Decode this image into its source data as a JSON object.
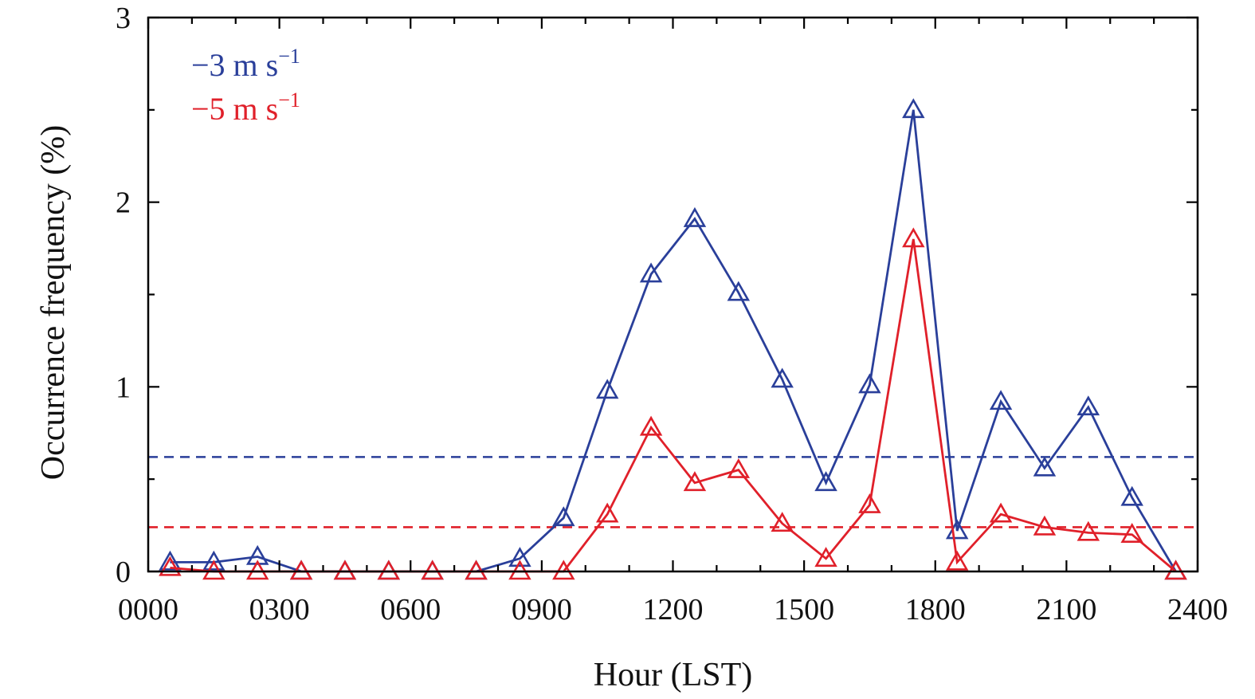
{
  "chart_data": {
    "type": "line",
    "xlabel": "Hour (LST)",
    "ylabel": "Occurrence frequency (%)",
    "xlim": [
      0,
      2400
    ],
    "ylim": [
      0,
      3
    ],
    "x_tick_labels": [
      "0000",
      "0300",
      "0600",
      "0900",
      "1200",
      "1500",
      "1800",
      "2100",
      "2400"
    ],
    "y_tick_labels": [
      "0",
      "1",
      "2",
      "3"
    ],
    "grid": false,
    "legend_position": "top-left",
    "legend": [
      {
        "base": "−3 m s",
        "sup": "−1",
        "color": "#2a3f9a"
      },
      {
        "base": "−5 m s",
        "sup": "−1",
        "color": "#e0202a"
      }
    ],
    "x": [
      50,
      150,
      250,
      350,
      450,
      550,
      650,
      750,
      850,
      950,
      1050,
      1150,
      1250,
      1350,
      1450,
      1550,
      1650,
      1750,
      1850,
      1950,
      2050,
      2150,
      2250,
      2350
    ],
    "series": [
      {
        "color": "#2a3f9a",
        "marker": "triangle",
        "values": [
          0.05,
          0.05,
          0.08,
          0,
          0,
          0,
          0,
          0,
          0.07,
          0.29,
          0.98,
          1.61,
          1.91,
          1.51,
          1.04,
          0.48,
          1.01,
          2.5,
          0.22,
          0.92,
          0.56,
          0.89,
          0.4,
          0
        ],
        "mean": 0.62
      },
      {
        "color": "#e0202a",
        "marker": "triangle",
        "values": [
          0.02,
          0,
          0,
          0,
          0,
          0,
          0,
          0,
          0,
          0,
          0.31,
          0.78,
          0.48,
          0.55,
          0.26,
          0.07,
          0.36,
          1.8,
          0.05,
          0.31,
          0.24,
          0.21,
          0.2,
          0
        ],
        "mean": 0.24
      }
    ]
  }
}
